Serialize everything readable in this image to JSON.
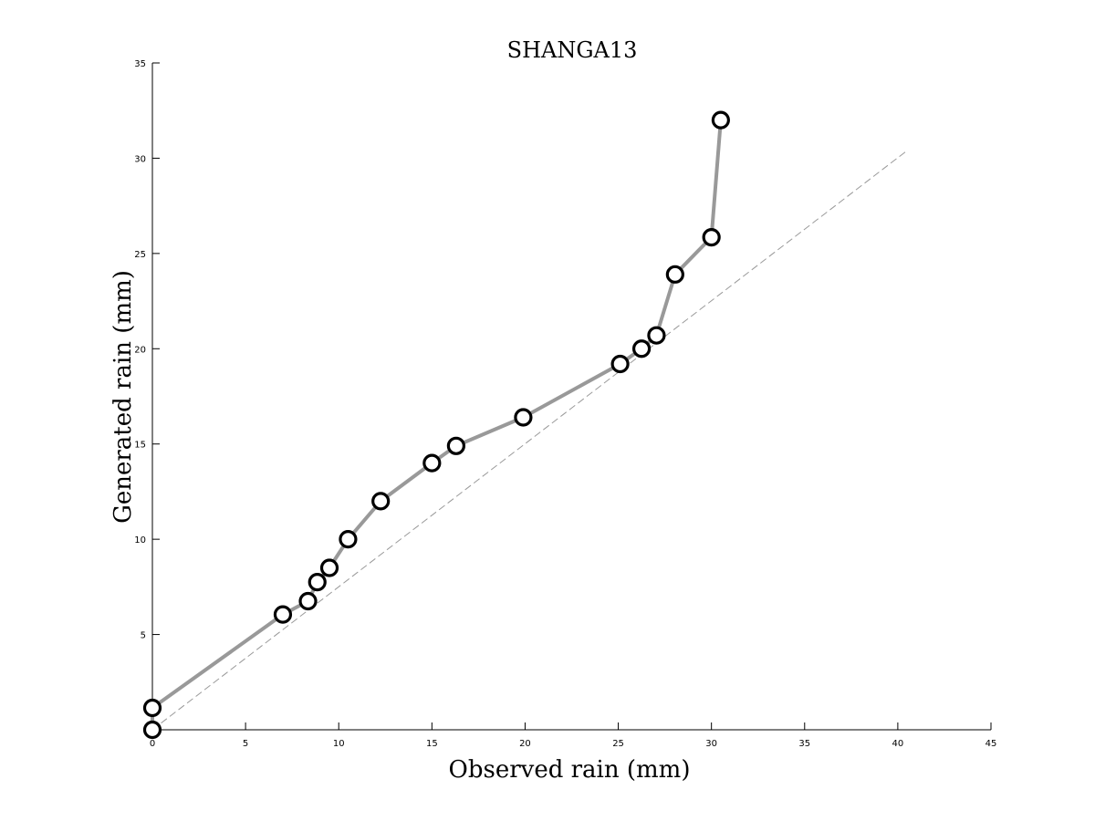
{
  "chart_data": {
    "type": "scatter",
    "title": "SHANGA13",
    "xlabel": "Observed rain (mm)",
    "ylabel": "Generated rain (mm)",
    "xlim": [
      0,
      45
    ],
    "ylim": [
      0,
      35
    ],
    "xticks": [
      "0",
      "5",
      "10",
      "15",
      "20",
      "25",
      "30",
      "35",
      "40",
      "45"
    ],
    "yticks": [
      "5",
      "10",
      "15",
      "20",
      "25",
      "30",
      "35"
    ],
    "grid": false,
    "series": [
      {
        "style": "line-with-open-circle-markers",
        "color": "#999999",
        "marker_edge_color": "#000000",
        "x": [
          0.0,
          0.0,
          7.0,
          8.35,
          8.85,
          9.5,
          10.5,
          12.25,
          15.0,
          16.3,
          19.9,
          25.1,
          26.25,
          27.05,
          28.05,
          30.0,
          30.5
        ],
        "y": [
          0.0,
          1.15,
          6.05,
          6.75,
          7.75,
          8.5,
          10.0,
          12.0,
          14.0,
          14.9,
          16.4,
          19.2,
          20.0,
          20.7,
          23.9,
          25.85,
          32.0
        ]
      }
    ],
    "reference_line": {
      "style": "dashed",
      "color": "#999999",
      "x": [
        0,
        40.5
      ],
      "y": [
        0,
        30.4
      ]
    }
  }
}
